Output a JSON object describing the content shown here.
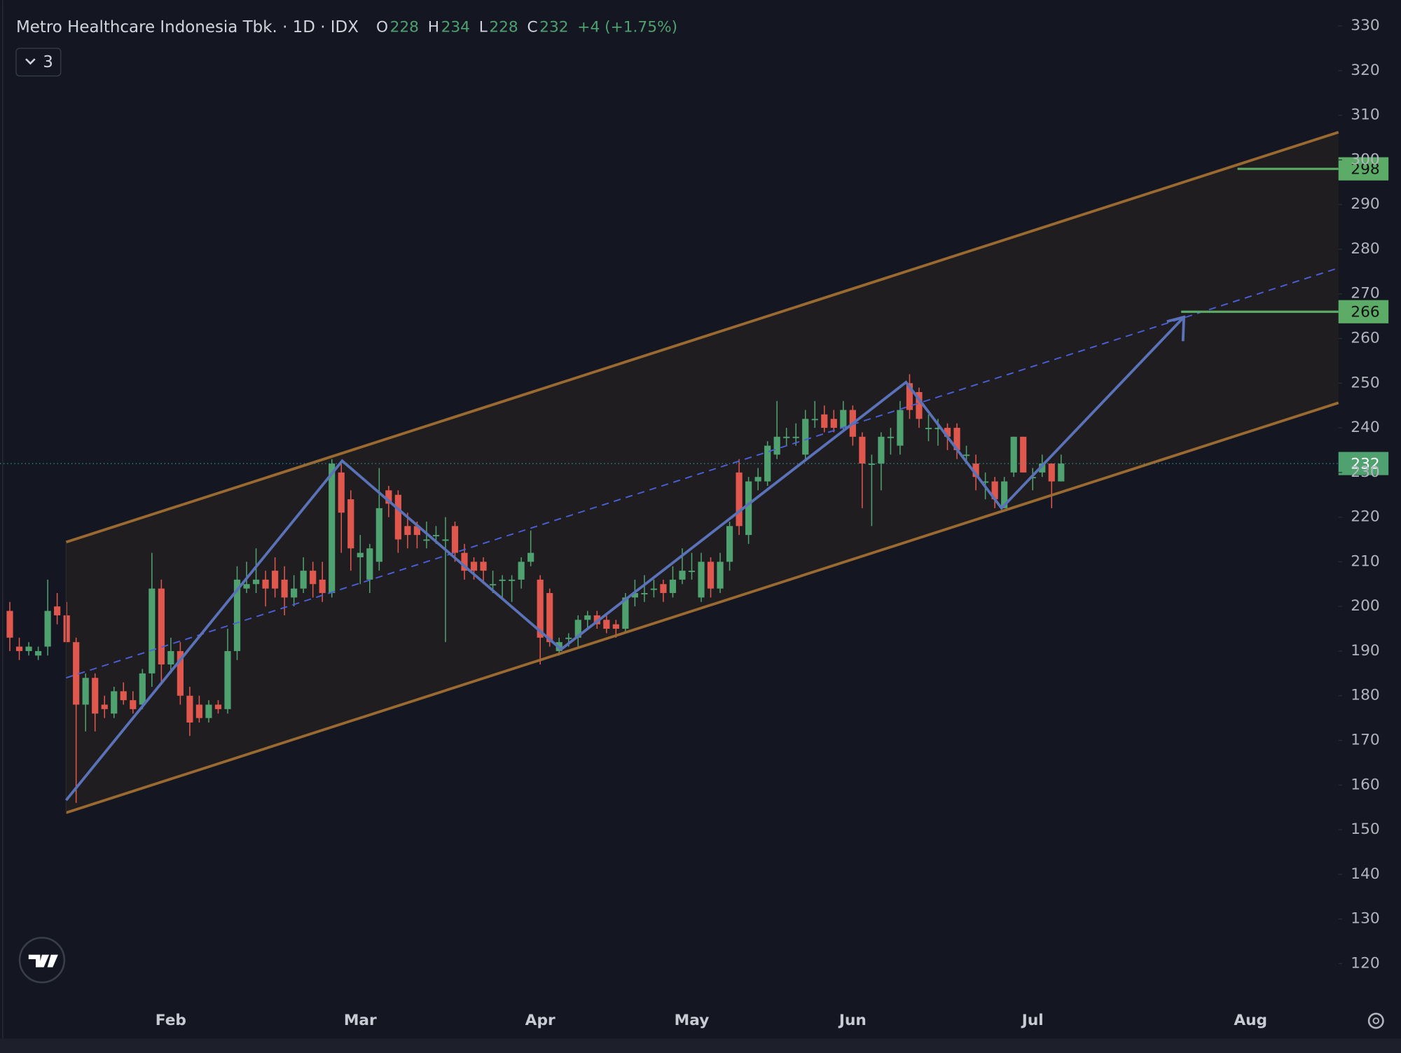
{
  "chart_data": {
    "type": "candlestick",
    "title": "Metro Healthcare Indonesia Tbk. · 1D · IDX",
    "ohlc_labels": [
      "O",
      "H",
      "L",
      "C"
    ],
    "change": "+4 (+1.75%)",
    "indicators": "3",
    "up_color": "#4fa16f",
    "down_color": "#e0574d",
    "categories": [
      null,
      null,
      null,
      null,
      null,
      null,
      null,
      null,
      null,
      null,
      null,
      null,
      null,
      null,
      null,
      null,
      null,
      "Feb",
      null,
      null,
      null,
      null,
      null,
      null,
      null,
      null,
      null,
      null,
      null,
      null,
      null,
      null,
      null,
      null,
      null,
      null,
      null,
      "Mar",
      null,
      null,
      null,
      null,
      null,
      null,
      null,
      null,
      null,
      null,
      null,
      null,
      null,
      null,
      null,
      null,
      null,
      null,
      "Apr",
      null,
      null,
      null,
      null,
      null,
      null,
      null,
      null,
      null,
      null,
      null,
      null,
      null,
      null,
      null,
      "May",
      null,
      null,
      null,
      null,
      null,
      null,
      null,
      null,
      null,
      null,
      null,
      null,
      null,
      null,
      null,
      null,
      "Jun",
      null,
      null,
      null,
      null,
      null,
      null,
      null,
      null,
      null,
      null,
      null,
      null,
      null,
      null,
      null,
      null,
      null,
      null,
      "Jul",
      null,
      null,
      null,
      null,
      null,
      null,
      null,
      null,
      null,
      null,
      null,
      null,
      null,
      null,
      null,
      null,
      null,
      null,
      null,
      null,
      null,
      null,
      "Aug"
    ],
    "open": [
      199,
      191,
      190,
      189,
      191,
      200,
      198,
      192,
      178,
      184,
      178,
      176,
      181,
      179,
      178,
      185,
      204,
      187,
      190,
      180,
      178,
      175,
      178,
      177,
      190,
      204,
      205,
      206,
      208,
      206,
      202,
      204,
      208,
      206,
      203,
      230,
      224,
      211,
      206,
      210,
      226,
      225,
      218,
      218,
      215,
      216,
      215,
      218,
      212,
      210,
      210,
      205,
      206,
      206,
      206,
      210,
      206,
      203,
      190,
      193,
      193,
      197,
      198,
      197,
      196,
      195,
      202,
      203,
      204,
      205,
      203,
      206,
      208,
      202,
      210,
      204,
      210,
      230,
      216,
      228,
      228,
      234,
      238,
      238,
      234,
      242,
      243,
      242,
      240,
      244,
      238,
      232,
      232,
      238,
      236,
      250,
      248,
      240,
      240,
      240,
      240,
      234,
      232,
      228,
      228,
      222,
      230,
      238,
      229,
      230,
      232,
      228,
      null,
      null,
      null,
      null,
      null,
      null,
      null,
      null,
      null,
      null,
      null,
      null,
      null,
      null,
      null,
      null,
      null,
      null,
      null,
      null
    ],
    "high": [
      201,
      193,
      192,
      191,
      206,
      203,
      201,
      193,
      185,
      185,
      180,
      182,
      183,
      181,
      186,
      212,
      206,
      193,
      192,
      182,
      180,
      179,
      179,
      195,
      209,
      210,
      213,
      208,
      211,
      209,
      207,
      211,
      210,
      210,
      233,
      232,
      226,
      216,
      214,
      231,
      227,
      226,
      221,
      219,
      219,
      218,
      220,
      219,
      214,
      211,
      211,
      208,
      207,
      207,
      211,
      217,
      207,
      204,
      193,
      194,
      198,
      199,
      199,
      198,
      197,
      203,
      206,
      207,
      206,
      206,
      209,
      213,
      212,
      212,
      211,
      212,
      219,
      233,
      229,
      231,
      237,
      246,
      240,
      241,
      244,
      246,
      245,
      244,
      246,
      245,
      239,
      234,
      239,
      240,
      246,
      252,
      249,
      243,
      242,
      241,
      241,
      236,
      234,
      230,
      229,
      229,
      238,
      238,
      231,
      234,
      232,
      234,
      null,
      null,
      null,
      null,
      null,
      null,
      null,
      null,
      null,
      null,
      null,
      null,
      null,
      null,
      null,
      null,
      null,
      null,
      null,
      null
    ],
    "low": [
      190,
      188,
      189,
      188,
      189,
      196,
      192,
      156,
      172,
      172,
      175,
      175,
      178,
      176,
      177,
      182,
      183,
      185,
      178,
      171,
      174,
      174,
      176,
      176,
      188,
      203,
      203,
      200,
      202,
      198,
      200,
      203,
      202,
      201,
      202,
      212,
      208,
      205,
      203,
      208,
      220,
      212,
      213,
      213,
      213,
      214,
      192,
      210,
      206,
      206,
      205,
      203,
      202,
      201,
      204,
      209,
      187,
      191,
      189,
      191,
      191,
      195,
      195,
      194,
      193,
      194,
      200,
      201,
      202,
      201,
      202,
      205,
      206,
      201,
      202,
      203,
      208,
      216,
      214,
      226,
      227,
      233,
      236,
      236,
      233,
      240,
      239,
      239,
      239,
      236,
      222,
      218,
      226,
      234,
      234,
      242,
      240,
      237,
      236,
      235,
      233,
      232,
      226,
      224,
      222,
      222,
      229,
      230,
      226,
      229,
      222,
      228,
      null,
      null,
      null,
      null,
      null,
      null,
      null,
      null,
      null,
      null,
      null,
      null,
      null,
      null,
      null,
      null,
      null,
      null,
      null,
      null
    ],
    "close": [
      193,
      190,
      191,
      190,
      199,
      198,
      192,
      178,
      184,
      176,
      177,
      181,
      179,
      177,
      185,
      204,
      187,
      190,
      180,
      174,
      175,
      178,
      177,
      190,
      206,
      205,
      206,
      204,
      204,
      202,
      204,
      208,
      205,
      203,
      232,
      221,
      213,
      212,
      213,
      222,
      223,
      215,
      216,
      216,
      215,
      216,
      215,
      212,
      208,
      208,
      208,
      205,
      206,
      206,
      210,
      212,
      193,
      192,
      192,
      193,
      197,
      198,
      196,
      195,
      195,
      202,
      203,
      203,
      204,
      203,
      206,
      208,
      208,
      210,
      204,
      210,
      218,
      218,
      228,
      229,
      236,
      238,
      238,
      238,
      242,
      242,
      240,
      240,
      244,
      238,
      232,
      232,
      238,
      238,
      244,
      244,
      242,
      240,
      240,
      238,
      235,
      234,
      229,
      228,
      224,
      228,
      238,
      230,
      229,
      232,
      228,
      232,
      null,
      null,
      null,
      null,
      null,
      null,
      null,
      null,
      null,
      null,
      null,
      null,
      null,
      null,
      null,
      null,
      null,
      null,
      null,
      null
    ],
    "ylim": [
      110,
      335
    ],
    "yticks": [
      120,
      130,
      140,
      150,
      160,
      170,
      180,
      190,
      200,
      210,
      220,
      230,
      240,
      250,
      260,
      270,
      280,
      290,
      300,
      310,
      320,
      330
    ],
    "levels": [
      298,
      266
    ],
    "level_color": "#5cab66"
  }
}
